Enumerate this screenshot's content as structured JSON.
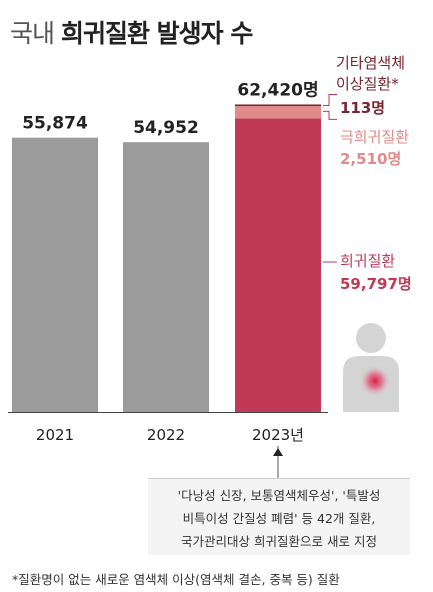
{
  "title": {
    "light": "국내",
    "bold": "희귀질환 발생자 수"
  },
  "chart_data": {
    "type": "bar",
    "categories": [
      "2021",
      "2022",
      "2023년"
    ],
    "series": [
      {
        "name": "희귀질환",
        "values": [
          55874,
          54952,
          59797
        ]
      },
      {
        "name": "극희귀질환",
        "values": [
          0,
          0,
          2510
        ]
      },
      {
        "name": "기타염색체 이상질환*",
        "values": [
          0,
          0,
          113
        ]
      }
    ],
    "value_labels": [
      "55,874",
      "54,952",
      "62,420명"
    ],
    "colors": {
      "base_gray": "#9b9b9b",
      "rare": "#c03a57",
      "ultra_rare": "#e08a8a",
      "chromosome": "#7a2431"
    },
    "ylim": [
      0,
      70000
    ]
  },
  "annotations": {
    "chromosome": {
      "label_line1": "기타염색체",
      "label_line2": "이상질환*",
      "value": "113명"
    },
    "ultra_rare": {
      "label": "극희귀질환",
      "value": "2,510명"
    },
    "rare": {
      "label": "희귀질환",
      "value": "59,797명"
    }
  },
  "note": {
    "lines": [
      "'다낭성 신장, 보통염색체우성', '특발성",
      "비특이성 간질성 폐렴' 등 42개 질환,",
      "국가관리대상 희귀질환으로 새로 지정"
    ]
  },
  "footnote": "*질환명이 없는 새로운 염색체 이상(염색체 결손, 중복 등) 질환"
}
